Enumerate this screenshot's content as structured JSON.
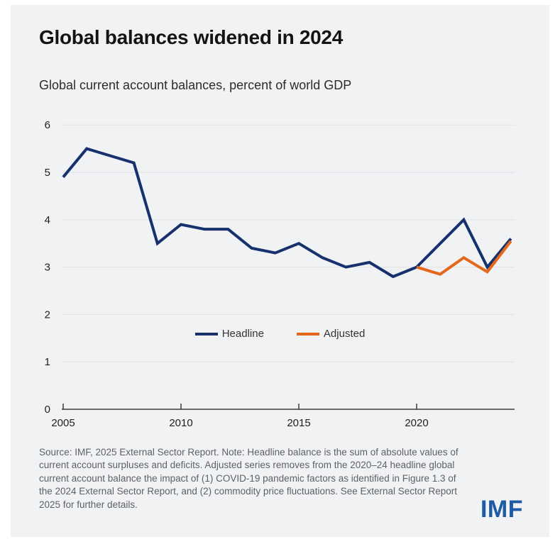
{
  "card": {
    "title": "Global balances widened in 2024",
    "subtitle": "Global current account balances, percent of world GDP",
    "source_note": "Source: IMF, 2025 External Sector Report. Note: Headline balance is the sum of absolute values of current account surpluses and deficits. Adjusted series removes from the 2020–24 headline global current account balance the impact of (1) COVID-19 pandemic factors as identified in Figure 1.3 of the 2024 External Sector Report, and (2) commodity price fluctuations. See External Sector Report 2025 for further details.",
    "logo_text": "IMF",
    "logo_color": "#1d5ba4",
    "background_color": "#f1f2f4"
  },
  "chart_data": {
    "type": "line",
    "title": "Global balances widened in 2024",
    "subtitle": "Global current account balances, percent of world GDP",
    "xlabel": "",
    "ylabel": "percent of world GDP",
    "x": [
      2005,
      2006,
      2007,
      2008,
      2009,
      2010,
      2011,
      2012,
      2013,
      2014,
      2015,
      2016,
      2017,
      2018,
      2019,
      2020,
      2021,
      2022,
      2023,
      2024
    ],
    "series": [
      {
        "name": "Headline",
        "color": "#16316d",
        "x": [
          2005,
          2006,
          2007,
          2008,
          2009,
          2010,
          2011,
          2012,
          2013,
          2014,
          2015,
          2016,
          2017,
          2018,
          2019,
          2020,
          2021,
          2022,
          2023,
          2024
        ],
        "values": [
          4.9,
          5.5,
          5.35,
          5.2,
          3.5,
          3.9,
          3.8,
          3.8,
          3.4,
          3.3,
          3.5,
          3.2,
          3.0,
          3.1,
          2.8,
          3.0,
          3.5,
          4.0,
          3.0,
          3.6
        ]
      },
      {
        "name": "Adjusted",
        "color": "#e5671b",
        "x": [
          2020,
          2021,
          2022,
          2023,
          2024
        ],
        "values": [
          3.0,
          2.85,
          3.2,
          2.9,
          3.55
        ]
      }
    ],
    "ylim": [
      0,
      6
    ],
    "yticks": [
      0,
      1,
      2,
      3,
      4,
      5,
      6
    ],
    "xticks": [
      2005,
      2010,
      2015,
      2020
    ],
    "grid": true,
    "legend_position": "inside-center",
    "colors": {
      "gridline": "#e3e4e6",
      "axis": "#3c3c3c"
    }
  }
}
